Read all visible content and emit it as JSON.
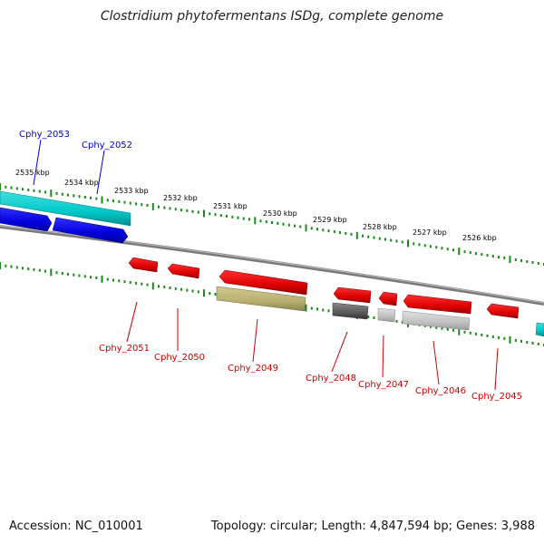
{
  "title": "Clostridium phytofermentans ISDg, complete genome",
  "footer": {
    "accession": "Accession: NC_010001",
    "topology": "Topology: circular; Length: 4,847,594 bp; Genes: 3,988"
  },
  "scale_labels": [
    "2535 kbp",
    "2534 kbp",
    "2533 kbp",
    "2532 kbp",
    "2531 kbp",
    "2530 kbp",
    "2529 kbp",
    "2528 kbp",
    "2527 kbp",
    "2526 kbp"
  ],
  "genes": {
    "forward": [
      "Cphy_2053",
      "Cphy_2052"
    ],
    "reverse": [
      "Cphy_2051",
      "Cphy_2050",
      "Cphy_2049",
      "Cphy_2048",
      "Cphy_2047",
      "Cphy_2046",
      "Cphy_2045"
    ]
  },
  "colors": {
    "forward_label": "#0000cc",
    "reverse_label": "#cc0000",
    "forward_gene": "#0000ee",
    "reverse_gene": "#ee0000",
    "tick": "#1a8a1a",
    "backbone": "#808080",
    "cyan": "#00cccc",
    "olive": "#b8b070",
    "dark_gray": "#666666",
    "light_gray": "#c0c0c0"
  }
}
